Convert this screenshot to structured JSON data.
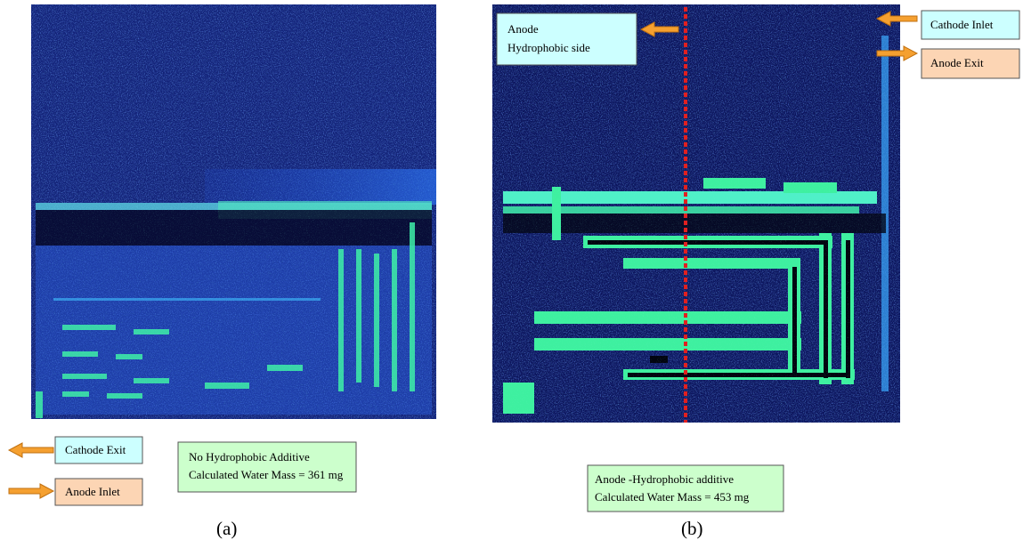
{
  "figure": {
    "panels": [
      {
        "label": "(a)",
        "callouts": [
          "Cathode Exit",
          "Anode Inlet"
        ],
        "caption_lines": [
          "No Hydrophobic Additive",
          "Calculated Water Mass = 361 mg"
        ]
      },
      {
        "label": "(b)",
        "side_note_lines": [
          "Anode",
          "Hydrophobic side"
        ],
        "callouts": [
          "Cathode Inlet",
          "Anode Exit"
        ],
        "caption_lines": [
          "Anode -Hydrophobic additive",
          "Calculated Water Mass = 453 mg"
        ]
      }
    ]
  }
}
